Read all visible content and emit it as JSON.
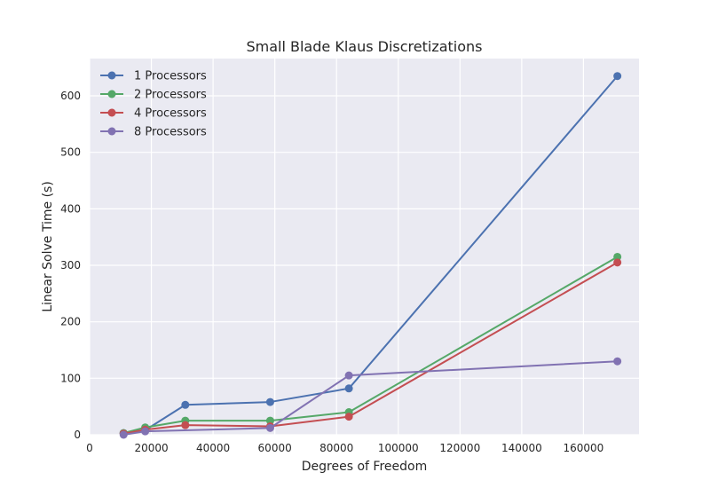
{
  "chart_data": {
    "type": "line",
    "title": "Small Blade Klaus Discretizations",
    "xlabel": "Degrees of Freedom",
    "ylabel": "Linear Solve Time (s)",
    "xlim": [
      0,
      178000
    ],
    "ylim": [
      0,
      666
    ],
    "xticks": [
      0,
      20000,
      40000,
      60000,
      80000,
      100000,
      120000,
      140000,
      160000
    ],
    "yticks": [
      0,
      100,
      200,
      300,
      400,
      500,
      600
    ],
    "grid": true,
    "legend_position": "upper-left",
    "style": "seaborn-darkgrid",
    "series": [
      {
        "name": "1 Processors",
        "color": "#4c72b0",
        "x": [
          11000,
          18000,
          31000,
          58500,
          84000,
          171000
        ],
        "y": [
          3,
          8,
          53,
          58,
          82,
          635
        ]
      },
      {
        "name": "2 Processors",
        "color": "#55a868",
        "x": [
          11000,
          18000,
          31000,
          58500,
          84000,
          171000
        ],
        "y": [
          3,
          13,
          25,
          25,
          40,
          315
        ]
      },
      {
        "name": "4 Processors",
        "color": "#c44e52",
        "x": [
          11000,
          18000,
          31000,
          58500,
          84000,
          171000
        ],
        "y": [
          2,
          9,
          17,
          15,
          32,
          305
        ]
      },
      {
        "name": "8 Processors",
        "color": "#8172b2",
        "x": [
          11000,
          18000,
          58500,
          84000,
          171000
        ],
        "y": [
          0,
          6,
          12,
          105,
          130
        ]
      }
    ]
  }
}
